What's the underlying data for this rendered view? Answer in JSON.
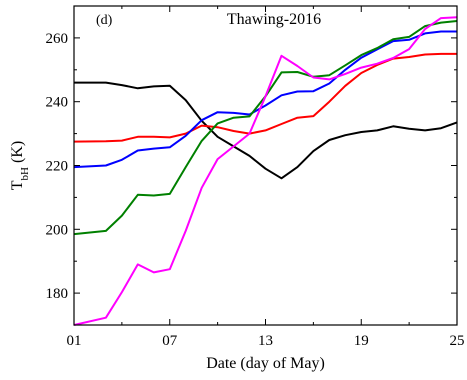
{
  "chart_data": {
    "type": "line",
    "title": "Thawing-2016",
    "panel_label": "(d)",
    "xlabel": "Date (day of May)",
    "ylabel_main": "T",
    "ylabel_sub": "bH",
    "ylabel_unit": " (K)",
    "xlim": [
      1,
      25
    ],
    "ylim": [
      170,
      270
    ],
    "xticks": [
      1,
      7,
      13,
      19,
      25
    ],
    "xtick_labels": [
      "01",
      "07",
      "13",
      "19",
      "25"
    ],
    "yticks": [
      180,
      200,
      220,
      240,
      260
    ],
    "grid": false,
    "x": [
      1,
      3,
      4,
      5,
      6,
      7,
      8,
      9,
      10,
      11,
      12,
      13,
      14,
      15,
      16,
      17,
      18,
      19,
      20,
      21,
      22,
      23,
      24,
      25
    ],
    "series": [
      {
        "color": "#000000",
        "values": [
          246,
          246,
          245.2,
          244.2,
          244.8,
          245,
          240.5,
          234,
          229,
          226,
          223,
          219,
          216,
          219.5,
          224.5,
          228,
          229.5,
          230.5,
          231,
          232.3,
          231.5,
          231,
          231.7,
          233.5
        ]
      },
      {
        "color": "#ff0000",
        "values": [
          227.5,
          227.6,
          227.8,
          229,
          229,
          228.8,
          230,
          232.5,
          232,
          230.8,
          230,
          231,
          233,
          235,
          235.5,
          240,
          245,
          249,
          251.5,
          253.5,
          254,
          254.8,
          255,
          255
        ]
      },
      {
        "color": "#0000ff",
        "values": [
          219.5,
          220,
          221.8,
          224.7,
          225.3,
          225.7,
          229.3,
          234.2,
          236.7,
          236.5,
          236,
          238.8,
          242,
          243.2,
          243.3,
          245.7,
          250,
          253.8,
          256.4,
          259,
          259.4,
          261.4,
          262,
          262
        ]
      },
      {
        "color": "#008000",
        "values": [
          198.5,
          199.5,
          204.3,
          210.8,
          210.6,
          211.1,
          219.5,
          227.7,
          233.2,
          235,
          235.4,
          241.7,
          249.2,
          249.3,
          247.8,
          248.3,
          251.4,
          254.6,
          256.8,
          259.6,
          260.3,
          263.7,
          264.8,
          265.3
        ]
      },
      {
        "color": "#ff00ff",
        "values": [
          170,
          172.3,
          180.3,
          189,
          186.5,
          187.5,
          199.5,
          213,
          222,
          226,
          230,
          241.7,
          254.4,
          251.2,
          247.6,
          247,
          248.7,
          250.7,
          251.9,
          253.7,
          256.5,
          262.8,
          266.2,
          266.5
        ]
      }
    ]
  }
}
